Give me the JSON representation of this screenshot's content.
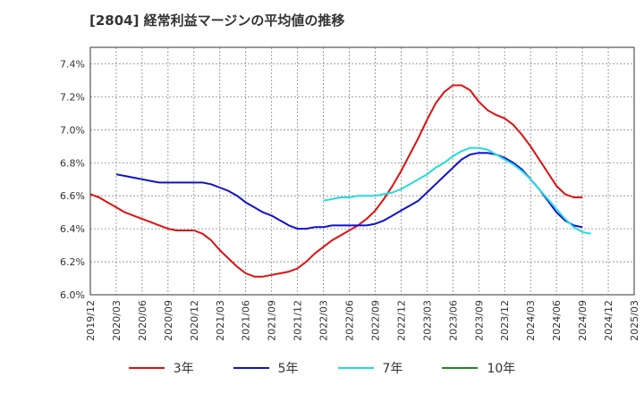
{
  "title": "[2804]  経常利益マージンの平均値の推移",
  "chart_data": {
    "type": "line",
    "title": "[2804]  経常利益マージンの平均値の推移",
    "xlabel": "",
    "ylabel": "",
    "ylim": [
      6.0,
      7.5
    ],
    "y_ticks": [
      "6.0%",
      "6.2%",
      "6.4%",
      "6.6%",
      "6.8%",
      "7.0%",
      "7.2%",
      "7.4%"
    ],
    "y_tick_values": [
      6.0,
      6.2,
      6.4,
      6.6,
      6.8,
      7.0,
      7.2,
      7.4
    ],
    "x_ticks": [
      "2019/12",
      "2020/03",
      "2020/06",
      "2020/09",
      "2020/12",
      "2021/03",
      "2021/06",
      "2021/09",
      "2021/12",
      "2022/03",
      "2022/06",
      "2022/09",
      "2022/12",
      "2023/03",
      "2023/06",
      "2023/09",
      "2023/12",
      "2024/03",
      "2024/06",
      "2024/09",
      "2024/12",
      "2025/03"
    ],
    "grid": true,
    "legend_position": "bottom",
    "series": [
      {
        "name": "3年",
        "color": "#dd1111",
        "start": "2019/12",
        "values": [
          6.61,
          6.59,
          6.56,
          6.53,
          6.5,
          6.48,
          6.46,
          6.44,
          6.42,
          6.4,
          6.39,
          6.39,
          6.39,
          6.37,
          6.33,
          6.27,
          6.22,
          6.17,
          6.13,
          6.11,
          6.11,
          6.12,
          6.13,
          6.14,
          6.16,
          6.2,
          6.25,
          6.29,
          6.33,
          6.36,
          6.39,
          6.42,
          6.46,
          6.51,
          6.58,
          6.66,
          6.75,
          6.85,
          6.95,
          7.06,
          7.16,
          7.23,
          7.27,
          7.27,
          7.24,
          7.17,
          7.12,
          7.09,
          7.07,
          7.03,
          6.97,
          6.9,
          6.82,
          6.74,
          6.66,
          6.61,
          6.59,
          6.59
        ]
      },
      {
        "name": "5年",
        "color": "#1111cc",
        "start": "2020/03",
        "values": [
          6.73,
          6.72,
          6.71,
          6.7,
          6.69,
          6.68,
          6.68,
          6.68,
          6.68,
          6.68,
          6.68,
          6.67,
          6.65,
          6.63,
          6.6,
          6.56,
          6.53,
          6.5,
          6.48,
          6.45,
          6.42,
          6.4,
          6.4,
          6.41,
          6.41,
          6.42,
          6.42,
          6.42,
          6.42,
          6.42,
          6.43,
          6.45,
          6.48,
          6.51,
          6.54,
          6.57,
          6.62,
          6.67,
          6.72,
          6.77,
          6.82,
          6.85,
          6.86,
          6.86,
          6.85,
          6.83,
          6.8,
          6.76,
          6.7,
          6.64,
          6.57,
          6.5,
          6.45,
          6.42,
          6.41
        ]
      },
      {
        "name": "7年",
        "color": "#22dddd",
        "start": "2022/03",
        "values": [
          6.57,
          6.58,
          6.59,
          6.59,
          6.6,
          6.6,
          6.6,
          6.61,
          6.62,
          6.64,
          6.67,
          6.7,
          6.73,
          6.77,
          6.8,
          6.84,
          6.87,
          6.89,
          6.89,
          6.88,
          6.85,
          6.82,
          6.79,
          6.75,
          6.7,
          6.64,
          6.58,
          6.52,
          6.46,
          6.41,
          6.38,
          6.37
        ]
      },
      {
        "name": "10年",
        "color": "#228822",
        "start": "2019/12",
        "values": []
      }
    ]
  }
}
